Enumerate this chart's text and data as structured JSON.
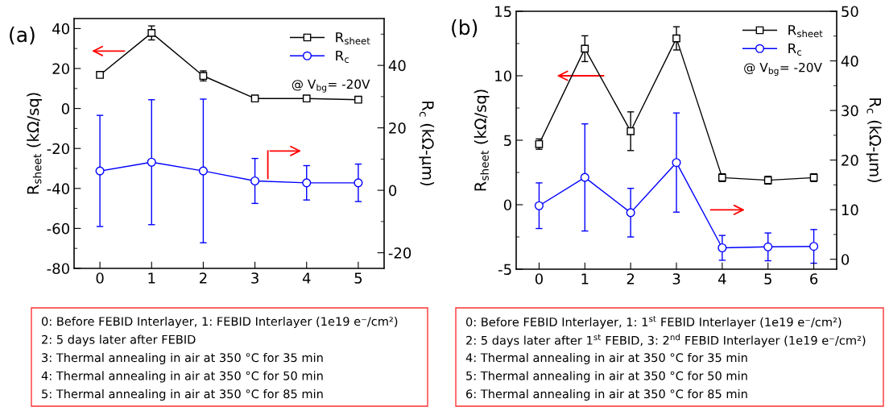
{
  "chart_data": [
    {
      "type": "line",
      "title": "(a)",
      "ylabel": "R$_{sheet}$ (kΩ/sq)",
      "y2label": "R$_{c}$ (kΩ-μm)",
      "x": [
        0,
        1,
        2,
        3,
        4,
        5
      ],
      "xlim": [
        -0.5,
        5.5
      ],
      "xticks": [
        0,
        1,
        2,
        3,
        4,
        5
      ],
      "ylim": [
        -80,
        45
      ],
      "yticks": [
        -80,
        -60,
        -40,
        -20,
        0,
        20,
        40
      ],
      "y2lim": [
        -25,
        55
      ],
      "y2ticks": [
        -20,
        0,
        20,
        40
      ],
      "legend": "top right",
      "grid": false,
      "series": [
        {
          "name": "R$_{sheet}$",
          "color": "#000000",
          "marker": "square",
          "values": [
            16.8,
            37.8,
            16.3,
            5.0,
            5.0,
            4.4
          ],
          "errors": [
            1.0,
            3.5,
            2.5,
            1.0,
            1.0,
            1.0
          ]
        },
        {
          "name": "R$_{c}$",
          "color": "#0000ff",
          "marker": "circle",
          "axis": "y2",
          "values": [
            6.2,
            9.0,
            6.2,
            3.0,
            2.4,
            2.4
          ],
          "errors": [
            17.8,
            20.0,
            23.0,
            7.2,
            5.5,
            6.0
          ]
        }
      ],
      "annotations": [
        "@ V$_{bg}$= -20V",
        "0: Before FEBID Interlayer, 1: FEBID Interlayer (1e19 e⁻/cm²)",
        "2: 5 days later after FEBID",
        "3: Thermal annealing in air at 350 °C for 35 min",
        "4: Thermal annealing in air at 350 °C for 50 min",
        "5: Thermal annealing in air at 350 °C for 85 min"
      ]
    },
    {
      "type": "line",
      "title": "(b)",
      "ylabel": "R$_{sheet}$ (kΩ/sq)",
      "y2label": "R$_{c}$ (kΩ-μm)",
      "x": [
        0,
        1,
        2,
        3,
        4,
        5,
        6
      ],
      "xlim": [
        -0.5,
        6.5
      ],
      "xticks": [
        0,
        1,
        2,
        3,
        4,
        5,
        6
      ],
      "ylim": [
        -5,
        15
      ],
      "yticks": [
        -5,
        0,
        5,
        10,
        15
      ],
      "y2lim": [
        -2,
        50
      ],
      "y2ticks": [
        0,
        10,
        20,
        30,
        40,
        50
      ],
      "legend": "top right",
      "grid": false,
      "series": [
        {
          "name": "R$_{sheet}$",
          "color": "#000000",
          "marker": "square",
          "values": [
            4.7,
            12.1,
            5.7,
            12.9,
            2.1,
            1.9,
            2.1
          ],
          "errors": [
            0.4,
            1.0,
            1.5,
            0.9,
            0.3,
            0.3,
            0.3
          ]
        },
        {
          "name": "R$_{c}$",
          "color": "#0000ff",
          "marker": "circle",
          "axis": "y2",
          "values": [
            10.8,
            16.5,
            9.4,
            19.5,
            2.3,
            2.5,
            2.6
          ],
          "errors": [
            4.6,
            10.8,
            4.9,
            10.0,
            2.5,
            2.8,
            3.4
          ]
        }
      ],
      "annotations": [
        "@ V$_{bg}$= -20V",
        "0: Before FEBID Interlayer, 1: 1$^{st}$ FEBID Interlayer (1e19 e⁻/cm²)",
        "2: 5 days later after 1$^{st}$ FEBID, 3: 2$^{nd}$ FEBID Interlayer (1e19 e⁻/cm²)",
        "4: Thermal annealing in air at 350 °C for 35 min",
        "5: Thermal annealing in air at 350 °C for 50 min",
        "6: Thermal annealing in air at 350 °C for 85 min"
      ]
    }
  ]
}
